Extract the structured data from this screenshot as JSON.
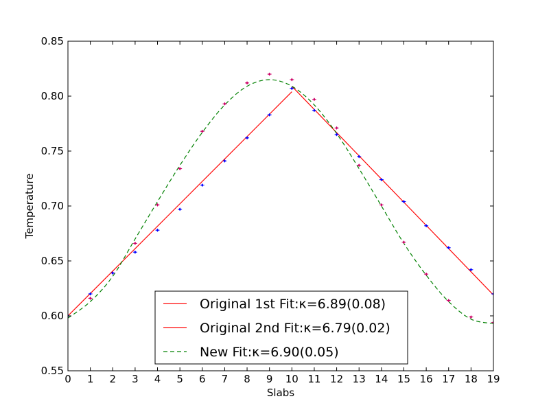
{
  "chart_data": {
    "type": "line",
    "xlabel": "Slabs",
    "ylabel": "Temperature",
    "xlim": [
      0,
      19
    ],
    "ylim": [
      0.55,
      0.85
    ],
    "x_ticks": [
      "0",
      "1",
      "2",
      "3",
      "4",
      "5",
      "6",
      "7",
      "8",
      "9",
      "10",
      "11",
      "12",
      "13",
      "14",
      "15",
      "16",
      "17",
      "18",
      "19"
    ],
    "y_ticks": [
      "0.55",
      "0.60",
      "0.65",
      "0.70",
      "0.75",
      "0.80",
      "0.85"
    ],
    "grid": false,
    "legend_position": "lower-center",
    "points_original": {
      "color": "#0000ff",
      "x": [
        0,
        1,
        2,
        3,
        4,
        5,
        6,
        7,
        8,
        9,
        10,
        11,
        12,
        13,
        14,
        15,
        16,
        17,
        18,
        19
      ],
      "y": [
        0.6,
        0.62,
        0.639,
        0.658,
        0.678,
        0.697,
        0.719,
        0.741,
        0.762,
        0.783,
        0.807,
        0.787,
        0.765,
        0.745,
        0.724,
        0.704,
        0.682,
        0.662,
        0.642,
        0.62
      ]
    },
    "points_new": {
      "color": "#cc0066",
      "x": [
        0,
        1,
        2,
        3,
        4,
        5,
        6,
        7,
        8,
        9,
        10,
        11,
        12,
        13,
        14,
        15,
        16,
        17,
        18,
        19
      ],
      "y": [
        0.6,
        0.616,
        0.639,
        0.666,
        0.701,
        0.734,
        0.768,
        0.793,
        0.812,
        0.82,
        0.815,
        0.797,
        0.771,
        0.737,
        0.701,
        0.667,
        0.638,
        0.614,
        0.599,
        0.594
      ]
    },
    "series": [
      {
        "name": "Original 1st Fit:κ=6.89(0.08)",
        "color": "#ff0000",
        "style": "solid",
        "x": [
          0,
          10
        ],
        "y": [
          0.6,
          0.804
        ]
      },
      {
        "name": "Original 2nd Fit:κ=6.79(0.02)",
        "color": "#ff0000",
        "style": "solid",
        "x": [
          10,
          19
        ],
        "y": [
          0.809,
          0.619
        ]
      },
      {
        "name": "New Fit:κ=6.90(0.05)",
        "color": "#008000",
        "style": "dashed",
        "x": [
          0,
          1,
          2,
          3,
          4,
          5,
          6,
          7,
          8,
          9,
          10,
          11,
          12,
          13,
          14,
          15,
          16,
          17,
          18,
          19
        ],
        "y": [
          0.598,
          0.613,
          0.636,
          0.67,
          0.704,
          0.737,
          0.767,
          0.792,
          0.809,
          0.815,
          0.809,
          0.792,
          0.766,
          0.734,
          0.7,
          0.666,
          0.637,
          0.613,
          0.597,
          0.593
        ]
      }
    ]
  }
}
